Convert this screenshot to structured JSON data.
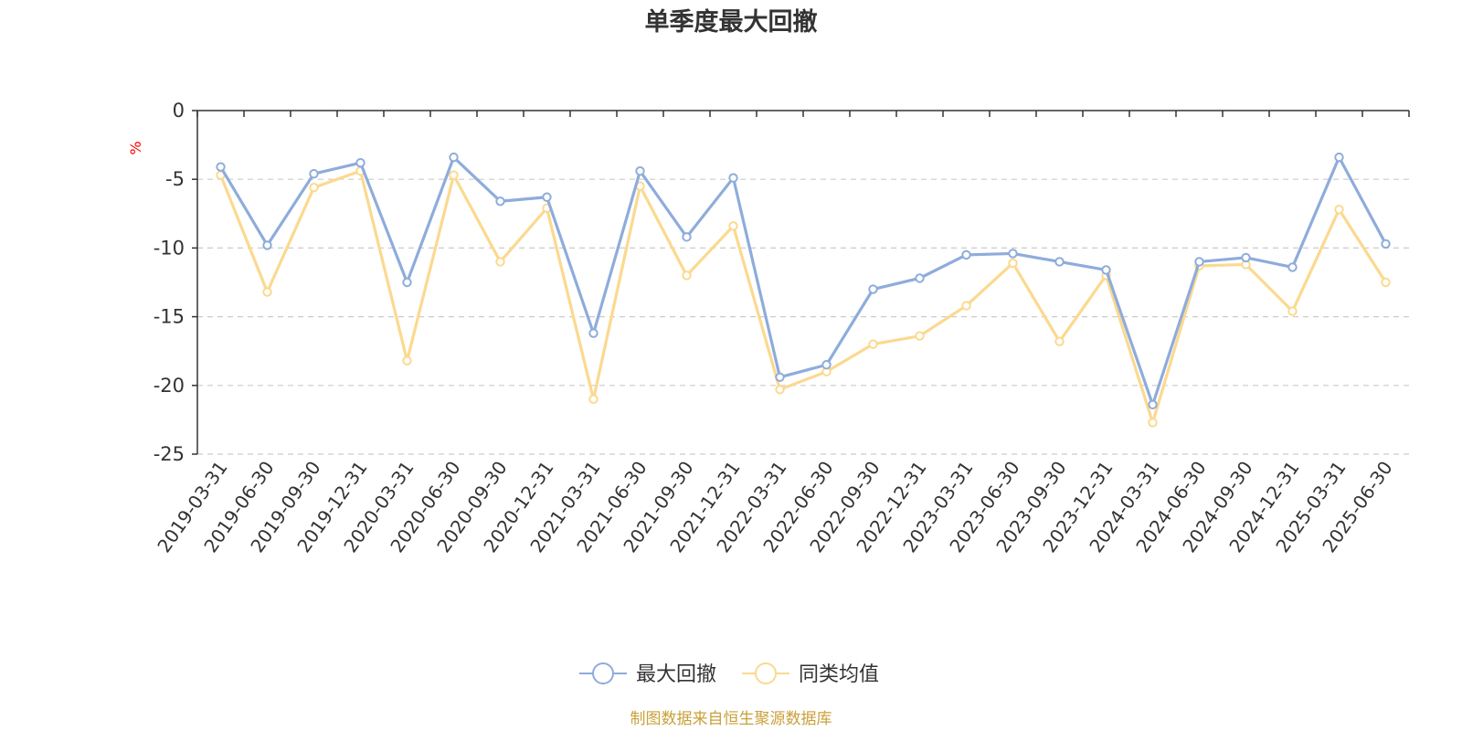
{
  "chart_data": {
    "type": "line",
    "title": "单季度最大回撤",
    "ylabel": "%",
    "ylim": [
      -25,
      0
    ],
    "yticks": [
      0,
      -5,
      -10,
      -15,
      -20,
      -25
    ],
    "grid": true,
    "legend_position": "bottom-center",
    "categories": [
      "2019-03-31",
      "2019-06-30",
      "2019-09-30",
      "2019-12-31",
      "2020-03-31",
      "2020-06-30",
      "2020-09-30",
      "2020-12-31",
      "2021-03-31",
      "2021-06-30",
      "2021-09-30",
      "2021-12-31",
      "2022-03-31",
      "2022-06-30",
      "2022-09-30",
      "2022-12-31",
      "2023-03-31",
      "2023-06-30",
      "2023-09-30",
      "2023-12-31",
      "2024-03-31",
      "2024-06-30",
      "2024-09-30",
      "2024-12-31",
      "2025-03-31",
      "2025-06-30"
    ],
    "series": [
      {
        "name": "最大回撤",
        "color": "#8eacdb",
        "values": [
          -4.1,
          -9.8,
          -4.6,
          -3.8,
          -12.5,
          -3.4,
          -6.6,
          -6.3,
          -16.2,
          -4.4,
          -9.2,
          -4.9,
          -19.4,
          -18.5,
          -13.0,
          -12.2,
          -10.5,
          -10.4,
          -11.0,
          -11.6,
          -21.4,
          -11.0,
          -10.7,
          -11.4,
          -3.4,
          -9.7
        ]
      },
      {
        "name": "同类均值",
        "color": "#fbd98f",
        "values": [
          -4.7,
          -13.2,
          -5.6,
          -4.4,
          -18.2,
          -4.7,
          -11.0,
          -7.1,
          -21.0,
          -5.5,
          -12.0,
          -8.4,
          -20.3,
          -19.0,
          -17.0,
          -16.4,
          -14.2,
          -11.1,
          -16.8,
          -12.0,
          -22.7,
          -11.3,
          -11.2,
          -14.6,
          -7.2,
          -12.5
        ]
      }
    ]
  },
  "source_text": "制图数据来自恒生聚源数据库"
}
